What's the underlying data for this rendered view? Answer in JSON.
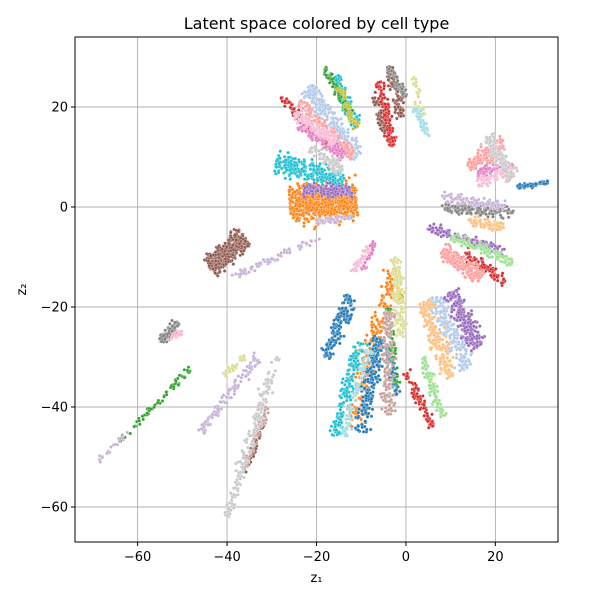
{
  "chart_data": {
    "type": "scatter",
    "title": "Latent space colored by cell type",
    "xlabel": "z₁",
    "ylabel": "z₂",
    "xlim": [
      -74,
      34
    ],
    "ylim": [
      -67,
      34
    ],
    "xticks": [
      -60,
      -40,
      -20,
      0,
      20
    ],
    "yticks": [
      -60,
      -40,
      -20,
      0,
      20
    ],
    "xtick_labels": [
      "−60",
      "−40",
      "−20",
      "0",
      "20"
    ],
    "ytick_labels": [
      "−60",
      "−40",
      "−20",
      "0",
      "20"
    ],
    "grid": true,
    "legend": "none",
    "palette": "tab20",
    "series": [
      {
        "color": "#ff7f0e",
        "segments": [
          {
            "from": [
              -26,
              0.5
            ],
            "to": [
              -11,
              1.5
            ],
            "width": 3.8,
            "n": 700
          },
          {
            "from": [
              -3,
              -13
            ],
            "to": [
              -12,
              -44
            ],
            "width": 2.0,
            "n": 220
          }
        ]
      },
      {
        "color": "#aec7e8",
        "segments": [
          {
            "from": [
              -22,
              24
            ],
            "to": [
              -11,
              10
            ],
            "width": 1.8,
            "n": 260
          },
          {
            "from": [
              6,
              -18
            ],
            "to": [
              14,
              -32
            ],
            "width": 2.2,
            "n": 220
          }
        ]
      },
      {
        "color": "#17becf",
        "segments": [
          {
            "from": [
              -29,
              9
            ],
            "to": [
              -14,
              5
            ],
            "width": 2.0,
            "n": 260
          },
          {
            "from": [
              -10,
              -27
            ],
            "to": [
              -16,
              -46
            ],
            "width": 1.4,
            "n": 160
          },
          {
            "from": [
              -16,
              26
            ],
            "to": [
              -11,
              16
            ],
            "width": 1.2,
            "n": 90
          }
        ]
      },
      {
        "color": "#9467bd",
        "segments": [
          {
            "from": [
              -23,
              3.5
            ],
            "to": [
              -12,
              3
            ],
            "width": 1.2,
            "n": 160
          },
          {
            "from": [
              10,
              -17
            ],
            "to": [
              16,
              -28
            ],
            "width": 2.0,
            "n": 240
          },
          {
            "from": [
              5,
              -4
            ],
            "to": [
              22,
              -9
            ],
            "width": 1.0,
            "n": 120
          }
        ]
      },
      {
        "color": "#d62728",
        "segments": [
          {
            "from": [
              -6,
              25
            ],
            "to": [
              -3,
              12
            ],
            "width": 1.0,
            "n": 140
          },
          {
            "from": [
              -28,
              22
            ],
            "to": [
              -17,
              12
            ],
            "width": 0.8,
            "n": 110
          },
          {
            "from": [
              0,
              -33
            ],
            "to": [
              6,
              -44
            ],
            "width": 1.0,
            "n": 90
          },
          {
            "from": [
              13,
              -9
            ],
            "to": [
              22,
              -15
            ],
            "width": 1.0,
            "n": 90
          }
        ]
      },
      {
        "color": "#1f77b4",
        "segments": [
          {
            "from": [
              -12,
              -18
            ],
            "to": [
              -18,
              -30
            ],
            "width": 1.5,
            "n": 160
          },
          {
            "from": [
              -6,
              -26
            ],
            "to": [
              -10,
              -45
            ],
            "width": 1.6,
            "n": 200
          },
          {
            "from": [
              25,
              4
            ],
            "to": [
              32,
              5
            ],
            "width": 0.5,
            "n": 70
          },
          {
            "from": [
              -4,
              -28
            ],
            "to": [
              -2,
              -38
            ],
            "width": 0.8,
            "n": 60
          }
        ]
      },
      {
        "color": "#ff9896",
        "segments": [
          {
            "from": [
              -24,
              21
            ],
            "to": [
              -12,
              10
            ],
            "width": 1.2,
            "n": 140
          },
          {
            "from": [
              8,
              -9
            ],
            "to": [
              17,
              -14
            ],
            "width": 1.6,
            "n": 200
          },
          {
            "from": [
              14,
              8
            ],
            "to": [
              22,
              13
            ],
            "width": 1.6,
            "n": 150
          },
          {
            "from": [
              -54,
              -26
            ],
            "to": [
              -50,
              -25
            ],
            "width": 0.8,
            "n": 25
          }
        ]
      },
      {
        "color": "#ffbb78",
        "segments": [
          {
            "from": [
              4,
              -19
            ],
            "to": [
              10,
              -34
            ],
            "width": 1.8,
            "n": 180
          },
          {
            "from": [
              14,
              -3
            ],
            "to": [
              22,
              -4
            ],
            "width": 1.0,
            "n": 90
          }
        ]
      },
      {
        "color": "#98df8a",
        "segments": [
          {
            "from": [
              4,
              -30
            ],
            "to": [
              8,
              -42
            ],
            "width": 1.0,
            "n": 110
          },
          {
            "from": [
              10,
              -6
            ],
            "to": [
              24,
              -11
            ],
            "width": 1.0,
            "n": 110
          }
        ]
      },
      {
        "color": "#2ca02c",
        "segments": [
          {
            "from": [
              -64,
              -47
            ],
            "to": [
              -48,
              -32
            ],
            "width": 0.7,
            "n": 60
          },
          {
            "from": [
              -18,
              28
            ],
            "to": [
              -12,
              18
            ],
            "width": 0.8,
            "n": 70
          },
          {
            "from": [
              -4,
              -20
            ],
            "to": [
              -2,
              -36
            ],
            "width": 0.7,
            "n": 50
          }
        ]
      },
      {
        "color": "#8c564b",
        "segments": [
          {
            "from": [
              -44,
              -12
            ],
            "to": [
              -36,
              -6
            ],
            "width": 2.2,
            "n": 380
          },
          {
            "from": [
              -4,
              28
            ],
            "to": [
              -1,
              18
            ],
            "width": 1.0,
            "n": 110
          },
          {
            "from": [
              -36,
              -53
            ],
            "to": [
              -32,
              -43
            ],
            "width": 0.6,
            "n": 50
          },
          {
            "from": [
              -7,
              22
            ],
            "to": [
              -5,
              15
            ],
            "width": 0.7,
            "n": 40
          }
        ]
      },
      {
        "color": "#c49c94",
        "segments": [
          {
            "from": [
              -4,
              -21
            ],
            "to": [
              -4,
              -42
            ],
            "width": 1.4,
            "n": 160
          },
          {
            "from": [
              -36,
              -52
            ],
            "to": [
              -31,
              -40
            ],
            "width": 0.8,
            "n": 60
          }
        ]
      },
      {
        "color": "#e377c2",
        "segments": [
          {
            "from": [
              -24,
              17
            ],
            "to": [
              -14,
              10
            ],
            "width": 1.2,
            "n": 120
          },
          {
            "from": [
              16,
              7
            ],
            "to": [
              24,
              8
            ],
            "width": 1.0,
            "n": 80
          },
          {
            "from": [
              -10,
              -13
            ],
            "to": [
              -7,
              -7
            ],
            "width": 0.6,
            "n": 25
          }
        ]
      },
      {
        "color": "#f7b6d2",
        "segments": [
          {
            "from": [
              -25,
              19
            ],
            "to": [
              -16,
              13
            ],
            "width": 1.2,
            "n": 110
          },
          {
            "from": [
              -12,
              -13
            ],
            "to": [
              -8,
              -8
            ],
            "width": 0.8,
            "n": 35
          },
          {
            "from": [
              16,
              5
            ],
            "to": [
              24,
              7
            ],
            "width": 1.2,
            "n": 80
          },
          {
            "from": [
              -55,
              -27
            ],
            "to": [
              -50,
              -25
            ],
            "width": 0.8,
            "n": 20
          }
        ]
      },
      {
        "color": "#7f7f7f",
        "segments": [
          {
            "from": [
              -55,
              -27
            ],
            "to": [
              -51,
              -23
            ],
            "width": 0.9,
            "n": 70
          },
          {
            "from": [
              8,
              0
            ],
            "to": [
              24,
              -1
            ],
            "width": 1.2,
            "n": 160
          },
          {
            "from": [
              -4,
              28
            ],
            "to": [
              0,
              22
            ],
            "width": 0.8,
            "n": 60
          }
        ]
      },
      {
        "color": "#c7c7c7",
        "segments": [
          {
            "from": [
              -40,
              -62
            ],
            "to": [
              -29,
              -30
            ],
            "width": 1.2,
            "n": 180
          },
          {
            "from": [
              -21,
              12
            ],
            "to": [
              -14,
              7
            ],
            "width": 1.2,
            "n": 90
          },
          {
            "from": [
              18,
              14
            ],
            "to": [
              24,
              6
            ],
            "width": 1.6,
            "n": 120
          }
        ]
      },
      {
        "color": "#bcbd22",
        "segments": [
          {
            "from": [
              -15,
              24
            ],
            "to": [
              -11,
              16
            ],
            "width": 0.8,
            "n": 50
          },
          {
            "from": [
              -2,
              -12
            ],
            "to": [
              -1,
              -20
            ],
            "width": 0.6,
            "n": 25
          }
        ]
      },
      {
        "color": "#dbdb8d",
        "segments": [
          {
            "from": [
              -2,
              -10
            ],
            "to": [
              -1,
              -26
            ],
            "width": 1.4,
            "n": 130
          },
          {
            "from": [
              -41,
              -34
            ],
            "to": [
              -36,
              -30
            ],
            "width": 0.8,
            "n": 30
          },
          {
            "from": [
              2,
              26
            ],
            "to": [
              4,
              16
            ],
            "width": 0.8,
            "n": 40
          }
        ]
      },
      {
        "color": "#9edae5",
        "segments": [
          {
            "from": [
              -14,
              -46
            ],
            "to": [
              -8,
              -28
            ],
            "width": 1.0,
            "n": 70
          },
          {
            "from": [
              2,
              20
            ],
            "to": [
              5,
              14
            ],
            "width": 0.9,
            "n": 50
          }
        ]
      },
      {
        "color": "#c5b0d5",
        "segments": [
          {
            "from": [
              -46,
              -45
            ],
            "to": [
              -33,
              -30
            ],
            "width": 1.0,
            "n": 110
          },
          {
            "from": [
              -39,
              -14
            ],
            "to": [
              -19,
              -6
            ],
            "width": 0.6,
            "n": 70
          },
          {
            "from": [
              -69,
              -51
            ],
            "to": [
              -62,
              -45
            ],
            "width": 0.5,
            "n": 20
          },
          {
            "from": [
              8,
              2
            ],
            "to": [
              22,
              0
            ],
            "width": 1.0,
            "n": 100
          },
          {
            "from": [
              -20,
              -3
            ],
            "to": [
              -12,
              -2
            ],
            "width": 0.7,
            "n": 50
          }
        ]
      }
    ]
  }
}
